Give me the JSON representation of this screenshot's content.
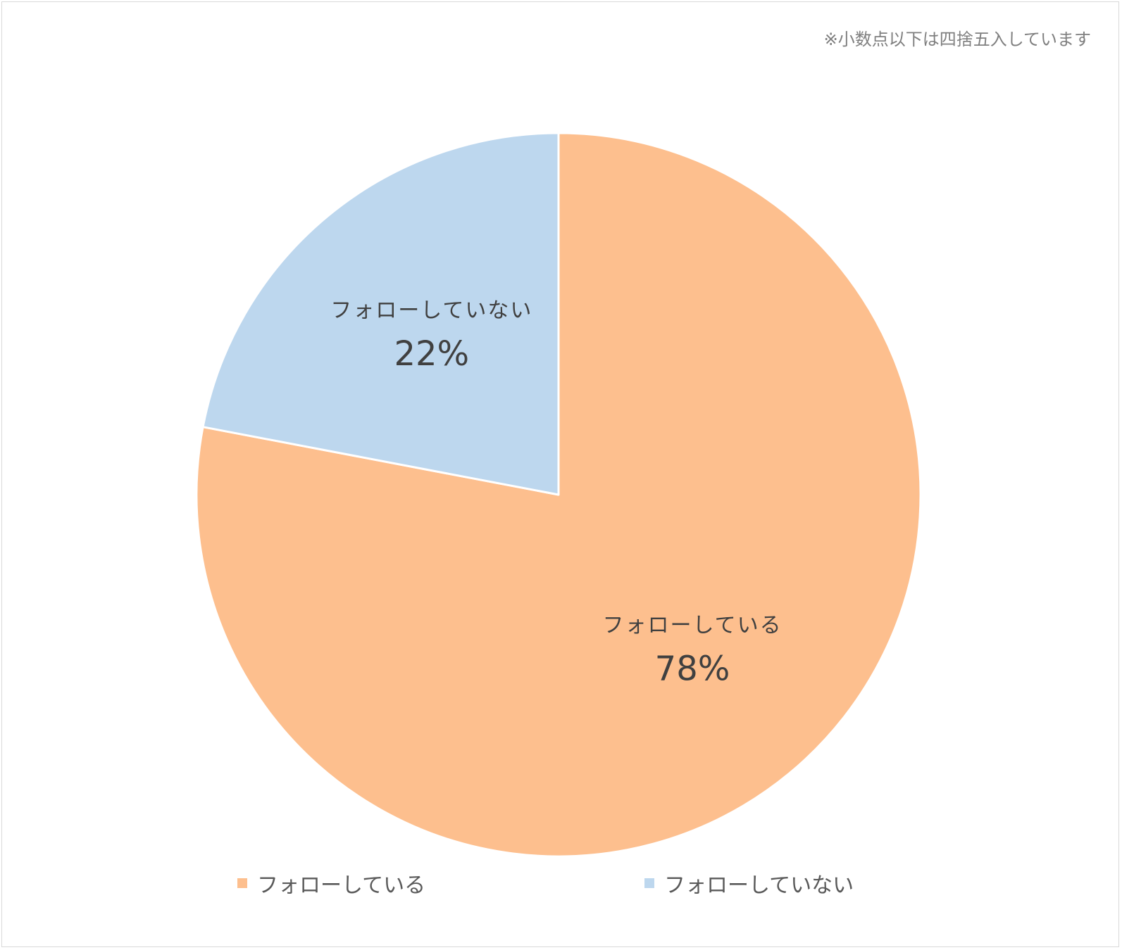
{
  "note": "※小数点以下は四捨五入しています",
  "chart_data": {
    "type": "pie",
    "title": "",
    "start_angle_deg": 0,
    "direction": "clockwise",
    "slices": [
      {
        "label": "フォローしている",
        "value": 78,
        "value_label": "78%",
        "color": "#FDBF8E"
      },
      {
        "label": "フォローしていない",
        "value": 22,
        "value_label": "22%",
        "color": "#BDD7EE"
      }
    ],
    "slice_border_color": "#ffffff",
    "data_label_color": "#404040",
    "data_label_name_color": "#404040",
    "legend": {
      "position": "bottom",
      "items": [
        {
          "label": "フォローしている",
          "color": "#FDBF8E"
        },
        {
          "label": "フォローしていない",
          "color": "#BDD7EE"
        }
      ]
    }
  }
}
